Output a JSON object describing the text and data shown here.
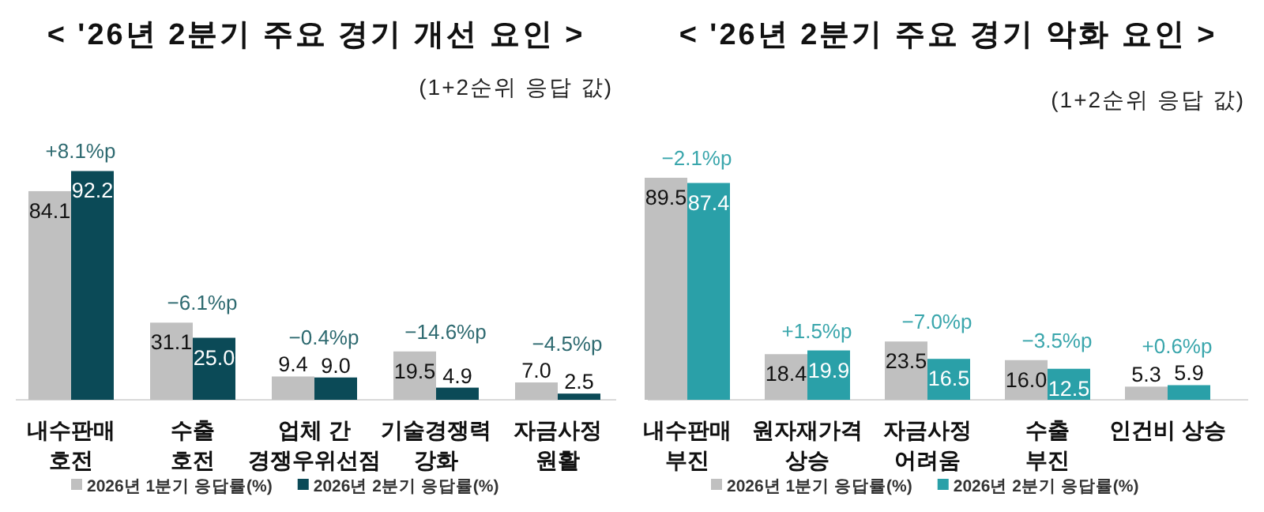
{
  "chart_data": [
    {
      "type": "bar",
      "title": "< '26년 2분기 주요 경기 개선 요인 >",
      "subtitle": "(1+2순위 응답 값)",
      "categories": [
        "내수판매\n호전",
        "수출\n호전",
        "업체 간\n경쟁우위선점",
        "기술경쟁력\n강화",
        "자금사정\n원활"
      ],
      "series": [
        {
          "name": "2026년 1분기 응답률(%)",
          "color": "#c0c0c0",
          "values": [
            84.1,
            31.1,
            9.4,
            19.5,
            7.0
          ],
          "value_labels": [
            "84.1",
            "31.1",
            "9.4",
            "19.5",
            "7.0"
          ]
        },
        {
          "name": "2026년 2분기 응답률(%)",
          "color": "#0b4a57",
          "values": [
            92.2,
            25.0,
            9.0,
            4.9,
            2.5
          ],
          "value_labels": [
            "92.2",
            "25.0",
            "9.0",
            "4.9",
            "2.5"
          ]
        }
      ],
      "annotations": [
        {
          "text": "+8.1%p",
          "x": "내수판매\n호전",
          "y": 92.2
        },
        {
          "text": "−6.1%p",
          "x": "수출\n호전",
          "y": 31.1
        },
        {
          "text": "−0.4%p",
          "x": "업체 간\n경쟁우위선점",
          "y": 9.4
        },
        {
          "text": "−14.6%p",
          "x": "기술경쟁력\n강화",
          "y": 19.5
        },
        {
          "text": "−4.5%p",
          "x": "자금사정\n원활",
          "y": 7.0
        }
      ],
      "legend": "bottom"
    },
    {
      "type": "bar",
      "title": "< '26년 2분기 주요 경기 악화 요인 >",
      "subtitle": "(1+2순위 응답 값)",
      "categories": [
        "내수판매\n부진",
        "원자재가격\n상승",
        "자금사정\n어려움",
        "수출\n부진",
        "인건비 상승"
      ],
      "series": [
        {
          "name": "2026년 1분기 응답률(%)",
          "color": "#c0c0c0",
          "values": [
            89.5,
            18.4,
            23.5,
            16.0,
            5.3
          ],
          "value_labels": [
            "89.5",
            "18.4",
            "23.5",
            "16.0",
            "5.3"
          ]
        },
        {
          "name": "2026년 2분기 응답률(%)",
          "color": "#2aa0a8",
          "values": [
            87.4,
            19.9,
            16.5,
            12.5,
            5.9
          ],
          "value_labels": [
            "87.4",
            "19.9",
            "16.5",
            "12.5",
            "5.9"
          ]
        }
      ],
      "annotations": [
        {
          "text": "−2.1%p",
          "x": "내수판매\n부진",
          "y": 89.5
        },
        {
          "text": "+1.5%p",
          "x": "원자재가격\n상승",
          "y": 19.9
        },
        {
          "text": "−7.0%p",
          "x": "자금사정\n어려움",
          "y": 23.5
        },
        {
          "text": "−3.5%p",
          "x": "수출\n부진",
          "y": 16.0
        },
        {
          "text": "+0.6%p",
          "x": "인건비 상승",
          "y": 5.9
        }
      ],
      "legend": "bottom"
    }
  ]
}
